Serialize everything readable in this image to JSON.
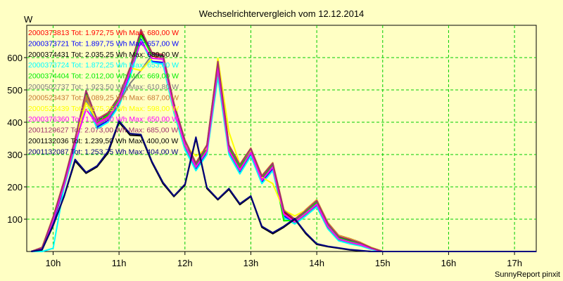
{
  "chart_data": {
    "type": "line",
    "title": "Wechselrichtervergleich vom 12.12.2014",
    "ylabel": "W",
    "xlabel": "",
    "footer": "SunnyReport pinxit",
    "ylim": [
      0,
      700
    ],
    "yticks": [
      100,
      200,
      300,
      400,
      500,
      600
    ],
    "xlim": [
      9.6,
      17.33
    ],
    "xticks": [
      {
        "value": 10,
        "label": "10h"
      },
      {
        "value": 11,
        "label": "11h"
      },
      {
        "value": 12,
        "label": "12h"
      },
      {
        "value": 13,
        "label": "13h"
      },
      {
        "value": 14,
        "label": "14h"
      },
      {
        "value": 15,
        "label": "15h"
      },
      {
        "value": 16,
        "label": "16h"
      },
      {
        "value": 17,
        "label": "17h"
      }
    ],
    "grid": true,
    "legend_position": "top-left",
    "x": [
      9.667,
      9.833,
      10.0,
      10.167,
      10.333,
      10.5,
      10.667,
      10.833,
      11.0,
      11.167,
      11.333,
      11.5,
      11.667,
      11.833,
      12.0,
      12.167,
      12.333,
      12.5,
      12.667,
      12.833,
      13.0,
      13.167,
      13.333,
      13.5,
      13.667,
      13.833,
      14.0,
      14.167,
      14.333,
      14.5,
      14.667,
      14.833,
      15.0,
      15.167,
      15.333,
      15.5,
      15.667,
      15.833,
      16.0,
      16.167,
      16.333,
      16.5,
      16.667,
      16.833,
      17.0,
      17.167,
      17.333
    ],
    "series": [
      {
        "id": "2000373813",
        "summary": "Tot: 1.972,75 Wh Max: 680,00 W",
        "color": "#ff0000",
        "values": [
          0,
          10,
          100,
          210,
          340,
          490,
          400,
          420,
          470,
          560,
          675,
          605,
          600,
          450,
          335,
          265,
          320,
          580,
          320,
          260,
          310,
          225,
          265,
          120,
          95,
          120,
          150,
          80,
          40,
          30,
          22,
          10,
          0,
          0,
          0,
          0,
          0,
          0,
          0,
          0,
          0,
          0,
          0,
          0,
          0,
          0,
          0
        ]
      },
      {
        "id": "2000373721",
        "summary": "Tot: 1.897,75 Wh Max: 657,00 W",
        "color": "#0000ff",
        "values": [
          0,
          8,
          90,
          200,
          320,
          470,
          385,
          405,
          455,
          545,
          657,
          588,
          585,
          435,
          320,
          255,
          305,
          560,
          305,
          245,
          300,
          215,
          255,
          110,
          88,
          112,
          140,
          72,
          35,
          25,
          18,
          8,
          0,
          0,
          0,
          0,
          0,
          0,
          0,
          0,
          0,
          0,
          0,
          0,
          0,
          0,
          0
        ]
      },
      {
        "id": "2000374431",
        "summary": "Tot: 2.035,25 Wh Max: 680,00 W",
        "color": "#000000",
        "values": [
          0,
          12,
          105,
          215,
          345,
          495,
          405,
          425,
          475,
          565,
          680,
          612,
          605,
          455,
          340,
          270,
          325,
          585,
          325,
          265,
          315,
          230,
          270,
          125,
          98,
          125,
          155,
          85,
          45,
          35,
          25,
          12,
          0,
          0,
          0,
          0,
          0,
          0,
          0,
          0,
          0,
          0,
          0,
          0,
          0,
          0,
          0
        ]
      },
      {
        "id": "2000373724",
        "summary": "Tot: 1.872,25 Wh Max: 653,00 W",
        "color": "#00ffff",
        "values": [
          0,
          0,
          10,
          200,
          318,
          465,
          380,
          400,
          450,
          540,
          653,
          585,
          580,
          430,
          315,
          250,
          300,
          540,
          300,
          240,
          295,
          210,
          250,
          105,
          85,
          110,
          138,
          70,
          33,
          24,
          17,
          6,
          0,
          0,
          0,
          0,
          0,
          0,
          0,
          0,
          0,
          0,
          0,
          0,
          0,
          0,
          0
        ]
      },
      {
        "id": "2000374404",
        "summary": "Tot: 2.012,00 Wh Max: 669,00 W",
        "color": "#00ee00",
        "values": [
          0,
          11,
          103,
          212,
          343,
          485,
          402,
          422,
          472,
          562,
          669,
          608,
          602,
          452,
          337,
          268,
          322,
          582,
          322,
          262,
          312,
          228,
          268,
          95,
          96,
          122,
          152,
          82,
          42,
          32,
          23,
          11,
          0,
          0,
          0,
          0,
          0,
          0,
          0,
          0,
          0,
          0,
          0,
          0,
          0,
          0,
          0
        ]
      },
      {
        "id": "2000502737",
        "summary": "Tot: 1.923,50 Wh Max: 610,80 W",
        "color": "#808080",
        "values": [
          0,
          9,
          95,
          205,
          330,
          470,
          390,
          410,
          460,
          520,
          560,
          610,
          600,
          440,
          325,
          260,
          310,
          560,
          310,
          250,
          305,
          220,
          260,
          115,
          90,
          115,
          145,
          75,
          38,
          28,
          20,
          9,
          0,
          0,
          0,
          0,
          0,
          0,
          0,
          0,
          0,
          0,
          0,
          0,
          0,
          0,
          0
        ]
      },
      {
        "id": "2000523437",
        "summary": "Tot: 2.089,25 Wh Max: 687,00 W",
        "color": "#c87832",
        "values": [
          0,
          13,
          108,
          220,
          350,
          480,
          410,
          430,
          480,
          570,
          687,
          615,
          610,
          460,
          345,
          275,
          330,
          590,
          330,
          270,
          320,
          235,
          275,
          130,
          100,
          130,
          160,
          90,
          50,
          40,
          28,
          12,
          0,
          0,
          0,
          0,
          0,
          0,
          0,
          0,
          0,
          0,
          0,
          0,
          0,
          0,
          0
        ]
      },
      {
        "id": "2000523439",
        "summary": "Tot: 2.075,25 Wh Max: 598,00 W",
        "color": "#ffff00",
        "values": [
          0,
          12,
          106,
          218,
          348,
          460,
          408,
          428,
          478,
          568,
          560,
          598,
          595,
          440,
          330,
          295,
          320,
          598,
          370,
          270,
          315,
          230,
          210,
          128,
          110,
          128,
          158,
          88,
          48,
          38,
          27,
          12,
          0,
          0,
          0,
          0,
          0,
          0,
          0,
          0,
          0,
          0,
          0,
          0,
          0,
          0,
          0
        ]
      },
      {
        "id": "2000376360",
        "summary": "Tot: 1.962,00 Wh Max: 650,00 W",
        "color": "#ff00ff",
        "values": [
          0,
          10,
          98,
          208,
          335,
          440,
          395,
          415,
          465,
          555,
          650,
          598,
          595,
          445,
          330,
          262,
          312,
          572,
          312,
          252,
          307,
          220,
          262,
          116,
          92,
          118,
          146,
          78,
          39,
          29,
          21,
          9,
          0,
          0,
          0,
          0,
          0,
          0,
          0,
          0,
          0,
          0,
          0,
          0,
          0,
          0,
          0
        ]
      },
      {
        "id": "2001129627",
        "summary": "Tot: 2.073,00 Wh Max: 685,00 W",
        "color": "#a0306e",
        "values": [
          0,
          12,
          106,
          218,
          348,
          498,
          408,
          428,
          478,
          568,
          685,
          614,
          608,
          458,
          343,
          272,
          328,
          588,
          328,
          268,
          318,
          232,
          272,
          127,
          99,
          127,
          157,
          87,
          47,
          37,
          26,
          11,
          0,
          0,
          0,
          0,
          0,
          0,
          0,
          0,
          0,
          0,
          0,
          0,
          0,
          0,
          0
        ]
      },
      {
        "id": "2001132036",
        "summary": "Tot: 1.239,50 Wh Max: 400,00 W",
        "color": "#000000",
        "values": [
          0,
          5,
          80,
          170,
          280,
          242,
          262,
          305,
          400,
          360,
          358,
          275,
          210,
          170,
          205,
          350,
          195,
          160,
          192,
          145,
          170,
          75,
          55,
          75,
          100,
          55,
          22,
          15,
          10,
          5,
          2,
          0,
          0,
          0,
          0,
          0,
          0,
          0,
          0,
          0,
          0,
          0,
          0,
          0,
          0,
          0,
          0
        ]
      },
      {
        "id": "2001132087",
        "summary": "Tot: 1.253,75 Wh Max: 404,00 W",
        "color": "#000080",
        "values": [
          0,
          6,
          82,
          172,
          285,
          245,
          265,
          310,
          404,
          365,
          362,
          278,
          214,
          172,
          208,
          354,
          198,
          162,
          195,
          148,
          172,
          78,
          58,
          78,
          102,
          58,
          24,
          16,
          11,
          6,
          3,
          0,
          0,
          0,
          0,
          0,
          0,
          0,
          0,
          0,
          0,
          0,
          0,
          0,
          0,
          0,
          0
        ]
      }
    ]
  }
}
